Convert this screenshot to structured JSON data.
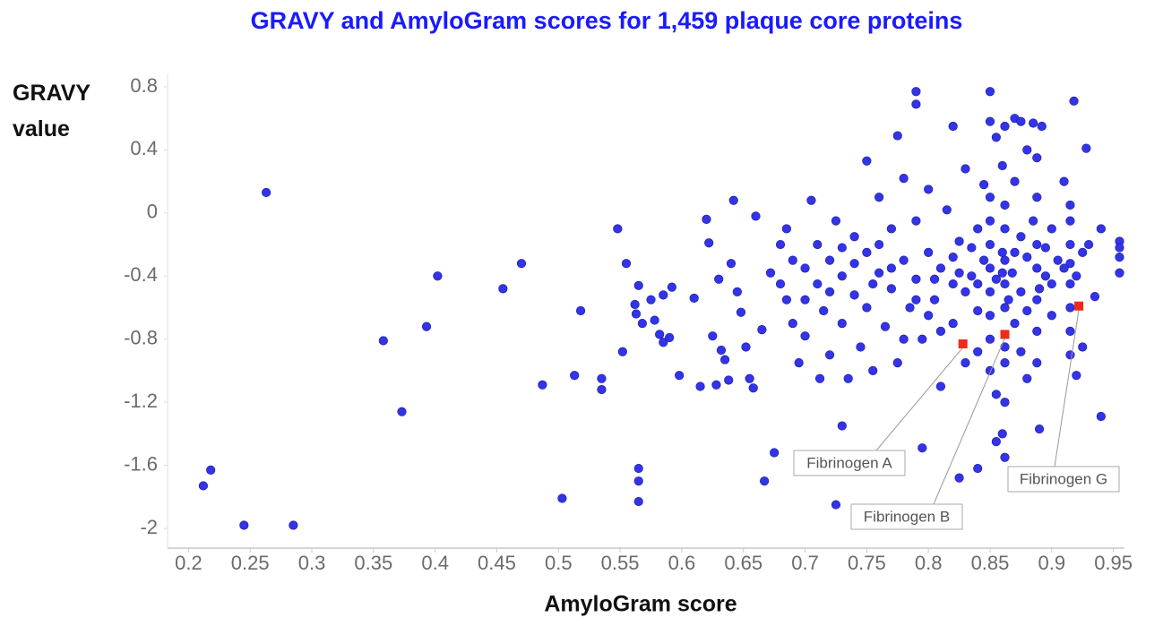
{
  "chart_data": {
    "type": "scatter",
    "title": "GRAVY and AmyloGram scores for 1,459 plaque core proteins",
    "title_color": "#1a1aff",
    "x_label": "AmyloGram score",
    "y_label": "GRAVY value",
    "xlim": [
      0.183,
      0.959
    ],
    "ylim": [
      -2.125,
      0.885
    ],
    "xticks": [
      0.2,
      0.25,
      0.3,
      0.35,
      0.4,
      0.45,
      0.5,
      0.55,
      0.6,
      0.65,
      0.7,
      0.75,
      0.8,
      0.85,
      0.9,
      0.95
    ],
    "yticks": [
      0.8,
      0.4,
      0,
      -0.4,
      -0.8,
      -1.2,
      -1.6,
      -2
    ],
    "grid": false,
    "series": [
      {
        "color": "#3333e8",
        "x": [
          0.263,
          0.212,
          0.218,
          0.245,
          0.285,
          0.358,
          0.373,
          0.393,
          0.402,
          0.455,
          0.47,
          0.487,
          0.503,
          0.513,
          0.518,
          0.535,
          0.535,
          0.548,
          0.552,
          0.555,
          0.562,
          0.563,
          0.565,
          0.568,
          0.565,
          0.565,
          0.565,
          0.575,
          0.578,
          0.582,
          0.585,
          0.585,
          0.59,
          0.592,
          0.598,
          0.61,
          0.615,
          0.62,
          0.622,
          0.625,
          0.628,
          0.63,
          0.632,
          0.635,
          0.638,
          0.64,
          0.642,
          0.645,
          0.648,
          0.652,
          0.655,
          0.658,
          0.66,
          0.665,
          0.667,
          0.672,
          0.675,
          0.68,
          0.685,
          0.69,
          0.712,
          0.725,
          0.73,
          0.75,
          0.775,
          0.79,
          0.79,
          0.795,
          0.82,
          0.825,
          0.84,
          0.85,
          0.85,
          0.855,
          0.862,
          0.87,
          0.875,
          0.885,
          0.892,
          0.918,
          0.928,
          0.862,
          0.855,
          0.86,
          0.89,
          0.94,
          0.935,
          0.955,
          0.955,
          0.955,
          0.955,
          0.94,
          0.93,
          0.7,
          0.7,
          0.7,
          0.705,
          0.71,
          0.71,
          0.715,
          0.72,
          0.72,
          0.725,
          0.73,
          0.73,
          0.735,
          0.74,
          0.74,
          0.745,
          0.75,
          0.75,
          0.755,
          0.76,
          0.76,
          0.765,
          0.77,
          0.77,
          0.775,
          0.78,
          0.78,
          0.785,
          0.79,
          0.79,
          0.795,
          0.8,
          0.8,
          0.805,
          0.81,
          0.81,
          0.815,
          0.82,
          0.82,
          0.825,
          0.83,
          0.83,
          0.835,
          0.84,
          0.84,
          0.845,
          0.845,
          0.85,
          0.85,
          0.85,
          0.85,
          0.85,
          0.85,
          0.85,
          0.85,
          0.855,
          0.855,
          0.86,
          0.86,
          0.862,
          0.862,
          0.862,
          0.862,
          0.862,
          0.862,
          0.862,
          0.862,
          0.868,
          0.87,
          0.87,
          0.875,
          0.875,
          0.88,
          0.88,
          0.88,
          0.885,
          0.888,
          0.888,
          0.888,
          0.888,
          0.888,
          0.888,
          0.888,
          0.895,
          0.9,
          0.9,
          0.905,
          0.91,
          0.915,
          0.915,
          0.915,
          0.915,
          0.915,
          0.915,
          0.915,
          0.915,
          0.92,
          0.92,
          0.925,
          0.925,
          0.68,
          0.685,
          0.69,
          0.695,
          0.72,
          0.76,
          0.78,
          0.8,
          0.82,
          0.84,
          0.87,
          0.89,
          0.91,
          0.77,
          0.79,
          0.83,
          0.86,
          0.875,
          0.74,
          0.805,
          0.835,
          0.865,
          0.895,
          0.73,
          0.81,
          0.84,
          0.88,
          0.755,
          0.825,
          0.9
        ],
        "values": [
          0.13,
          -1.73,
          -1.63,
          -1.98,
          -1.98,
          -0.81,
          -1.26,
          -0.72,
          -0.4,
          -0.48,
          -0.32,
          -1.09,
          -1.81,
          -1.03,
          -0.62,
          -1.05,
          -1.12,
          -0.1,
          -0.88,
          -0.32,
          -0.58,
          -0.64,
          -0.46,
          -0.7,
          -1.62,
          -1.7,
          -1.83,
          -0.55,
          -0.68,
          -0.77,
          -0.52,
          -0.82,
          -0.79,
          -0.47,
          -1.03,
          -0.54,
          -1.1,
          -0.04,
          -0.19,
          -0.78,
          -1.09,
          -0.42,
          -0.87,
          -0.93,
          -1.06,
          -0.32,
          0.08,
          -0.5,
          -0.63,
          -0.85,
          -1.05,
          -1.11,
          -0.02,
          -0.74,
          -1.7,
          -0.38,
          -1.52,
          -0.2,
          -0.55,
          -0.7,
          -1.05,
          -1.85,
          -1.35,
          0.33,
          0.49,
          0.77,
          0.69,
          -1.49,
          0.55,
          -1.68,
          -1.62,
          0.77,
          0.58,
          0.48,
          0.55,
          0.6,
          0.58,
          0.57,
          0.55,
          0.71,
          0.41,
          -1.55,
          -1.45,
          -1.4,
          -1.37,
          -1.29,
          -0.53,
          -0.18,
          -0.22,
          -0.28,
          -0.38,
          -0.1,
          -0.2,
          -0.35,
          -0.55,
          -0.78,
          0.08,
          -0.2,
          -0.45,
          -0.62,
          -0.3,
          -0.9,
          -0.05,
          -0.4,
          -0.7,
          -1.05,
          -0.15,
          -0.52,
          -0.85,
          -0.25,
          -0.6,
          -1.0,
          0.1,
          -0.38,
          -0.72,
          -0.1,
          -0.48,
          -0.95,
          0.22,
          -0.3,
          -0.6,
          -0.05,
          -0.42,
          -0.8,
          0.15,
          -0.25,
          -0.55,
          -1.1,
          -0.35,
          0.02,
          -0.7,
          -0.45,
          -0.18,
          0.28,
          -0.95,
          -0.4,
          -0.1,
          -0.62,
          0.18,
          -0.3,
          -0.05,
          -0.2,
          -0.35,
          -0.5,
          -0.65,
          -0.8,
          -1.0,
          0.1,
          -0.42,
          -1.15,
          0.3,
          -0.25,
          0.05,
          -0.1,
          -0.3,
          -0.45,
          -0.6,
          -0.85,
          -0.95,
          -1.2,
          -0.38,
          0.2,
          -0.7,
          -0.15,
          -0.5,
          0.4,
          -0.28,
          -1.05,
          -0.05,
          0.1,
          -0.2,
          -0.35,
          -0.55,
          -0.75,
          -0.95,
          0.35,
          -0.4,
          -0.1,
          -0.65,
          -0.3,
          0.2,
          0.05,
          -0.05,
          -0.2,
          -0.32,
          -0.45,
          -0.6,
          -0.75,
          -0.9,
          -1.03,
          -0.4,
          -0.25,
          -0.85,
          -0.45,
          -0.1,
          -0.3,
          -0.95,
          -0.5,
          -0.2,
          -0.8,
          -0.65,
          -0.28,
          -0.45,
          -0.25,
          -0.48,
          -0.35,
          -0.35,
          -0.55,
          -0.5,
          -0.38,
          -0.88,
          -0.32,
          -0.42,
          -0.22,
          -0.55,
          -0.22,
          -0.22,
          -0.75,
          -0.88,
          -0.62,
          -0.45,
          -0.38,
          -0.45
        ]
      }
    ],
    "highlight_color": "#ee2a1a",
    "annotations": [
      {
        "text": "Fibrinogen A",
        "x": 0.828,
        "y": -0.83
      },
      {
        "text": "Fibrinogen B",
        "x": 0.862,
        "y": -0.77
      },
      {
        "text": "Fibrinogen G",
        "x": 0.922,
        "y": -0.59
      }
    ]
  }
}
